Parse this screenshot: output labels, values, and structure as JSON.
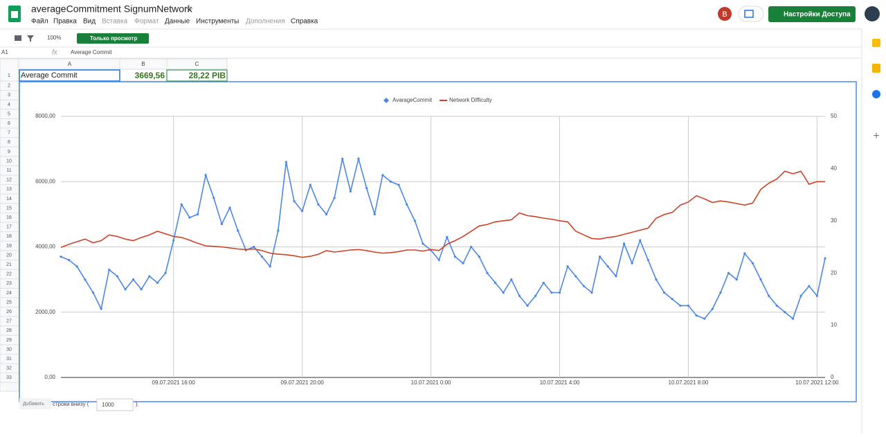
{
  "header": {
    "title": "averageCommitment SignumNetwork",
    "menu": [
      "Файл",
      "Правка",
      "Вид",
      "Вставка",
      "Формат",
      "Данные",
      "Инструменты",
      "Дополнения",
      "Справка"
    ],
    "avatar": "В",
    "share": "Настройки Доступа"
  },
  "toolbar": {
    "zoom": "100%",
    "mode": "Только просмотр"
  },
  "formula_bar": {
    "cell": "A1",
    "content": "Average Commit"
  },
  "sheet": {
    "columns": [
      "A",
      "B",
      "C"
    ],
    "row_headers": [
      1,
      2,
      3,
      4,
      5,
      6,
      7,
      8,
      9,
      10,
      11,
      12,
      13,
      14,
      15,
      16,
      17,
      18,
      19,
      20,
      21,
      22,
      23,
      24,
      25,
      26,
      27,
      28,
      29,
      30,
      31,
      32,
      33
    ],
    "row1": [
      "Average Commit",
      "3669,56",
      "28,22 PIB"
    ]
  },
  "footer": {
    "button": "Добавить",
    "text": "строки внизу (",
    "count": "1000",
    "end": ")."
  },
  "chart_data": {
    "type": "line",
    "legend": "top",
    "grid": true,
    "x": [
      "09.07.2021 12:30",
      "09.07.2021 12:45",
      "09.07.2021 13:00",
      "09.07.2021 13:15",
      "09.07.2021 13:30",
      "09.07.2021 13:45",
      "09.07.2021 14:00",
      "09.07.2021 14:15",
      "09.07.2021 14:30",
      "09.07.2021 14:45",
      "09.07.2021 15:00",
      "09.07.2021 15:15",
      "09.07.2021 15:30",
      "09.07.2021 15:45",
      "09.07.2021 16:00",
      "09.07.2021 16:15",
      "09.07.2021 16:30",
      "09.07.2021 16:45",
      "09.07.2021 17:00",
      "09.07.2021 17:15",
      "09.07.2021 17:30",
      "09.07.2021 17:45",
      "09.07.2021 18:00",
      "09.07.2021 18:15",
      "09.07.2021 18:30",
      "09.07.2021 18:45",
      "09.07.2021 19:00",
      "09.07.2021 19:15",
      "09.07.2021 19:30",
      "09.07.2021 19:45",
      "09.07.2021 20:00",
      "09.07.2021 20:15",
      "09.07.2021 20:30",
      "09.07.2021 20:45",
      "09.07.2021 21:00",
      "09.07.2021 21:15",
      "09.07.2021 21:30",
      "09.07.2021 21:45",
      "09.07.2021 22:00",
      "09.07.2021 22:15",
      "09.07.2021 22:30",
      "09.07.2021 22:45",
      "09.07.2021 23:00",
      "09.07.2021 23:15",
      "09.07.2021 23:30",
      "09.07.2021 23:45",
      "10.07.2021 0:00",
      "10.07.2021 0:15",
      "10.07.2021 0:30",
      "10.07.2021 0:45",
      "10.07.2021 1:00",
      "10.07.2021 1:15",
      "10.07.2021 1:30",
      "10.07.2021 1:45",
      "10.07.2021 2:00",
      "10.07.2021 2:15",
      "10.07.2021 2:30",
      "10.07.2021 2:45",
      "10.07.2021 3:00",
      "10.07.2021 3:15",
      "10.07.2021 3:30",
      "10.07.2021 3:45",
      "10.07.2021 4:00",
      "10.07.2021 4:15",
      "10.07.2021 4:30",
      "10.07.2021 4:45",
      "10.07.2021 5:00",
      "10.07.2021 5:15",
      "10.07.2021 5:30",
      "10.07.2021 5:45",
      "10.07.2021 6:00",
      "10.07.2021 6:15",
      "10.07.2021 6:30",
      "10.07.2021 6:45",
      "10.07.2021 7:00",
      "10.07.2021 7:15",
      "10.07.2021 7:30",
      "10.07.2021 7:45",
      "10.07.2021 8:00",
      "10.07.2021 8:15",
      "10.07.2021 8:30",
      "10.07.2021 8:45",
      "10.07.2021 9:00",
      "10.07.2021 9:15",
      "10.07.2021 9:30",
      "10.07.2021 9:45",
      "10.07.2021 10:00",
      "10.07.2021 10:15",
      "10.07.2021 10:30",
      "10.07.2021 10:45",
      "10.07.2021 11:00",
      "10.07.2021 11:15",
      "10.07.2021 11:30",
      "10.07.2021 11:45",
      "10.07.2021 12:00",
      "10.07.2021 12:15"
    ],
    "xlim": [
      "09.07.2021 12:30",
      "10.07.2021 12:15"
    ],
    "xticks": [
      "09.07.2021 16:00",
      "09.07.2021 20:00",
      "10.07.2021 0:00",
      "10.07.2021 4:00",
      "10.07.2021 8:00",
      "10.07.2021 12:00"
    ],
    "ylim": [
      0,
      8000
    ],
    "yticks": [
      {
        "value": 0,
        "label": "0,00"
      },
      {
        "value": 2000,
        "label": "2000,00"
      },
      {
        "value": 4000,
        "label": "4000,00"
      },
      {
        "value": 6000,
        "label": "6000,00"
      },
      {
        "value": 8000,
        "label": "8000,00"
      }
    ],
    "y2lim": [
      0,
      50
    ],
    "y2ticks": [
      0,
      10,
      20,
      30,
      40,
      50
    ],
    "series": [
      {
        "name": "AvarageCommit",
        "color": "#4a86e8",
        "markers": true,
        "values": [
          3700,
          3600,
          3400,
          3000,
          2600,
          2100,
          3300,
          3100,
          2700,
          3000,
          2700,
          3100,
          2900,
          3200,
          4200,
          5300,
          4900,
          5000,
          6200,
          5500,
          4700,
          5200,
          4500,
          3900,
          4000,
          3700,
          3400,
          4500,
          6600,
          5400,
          5100,
          5900,
          5300,
          5000,
          5500,
          6700,
          5700,
          6700,
          5800,
          5000,
          6200,
          6000,
          5900,
          5300,
          4800,
          4100,
          3900,
          3600,
          4300,
          3700,
          3500,
          4000,
          3700,
          3200,
          2900,
          2600,
          3000,
          2500,
          2200,
          2500,
          2900,
          2600,
          2600,
          3400,
          3100,
          2800,
          2600,
          3700,
          3400,
          3100,
          4100,
          3500,
          4200,
          3600,
          3000,
          2600,
          2400,
          2200,
          2200,
          1900,
          1800,
          2100,
          2600,
          3200,
          3000,
          3800,
          3500,
          3000,
          2500,
          2200,
          2000,
          1800,
          2500,
          2800,
          2500,
          3650
        ]
      },
      {
        "name": "Network Difficulty",
        "color": "#cc4125",
        "axis": "y2",
        "values": [
          24.9,
          25.5,
          26,
          26.5,
          25.8,
          26.2,
          27.3,
          27,
          26.5,
          26.2,
          26.8,
          27.3,
          28,
          27.5,
          27,
          26.8,
          26.3,
          25.7,
          25.2,
          25.1,
          25,
          24.8,
          24.6,
          24.5,
          24.6,
          24.3,
          23.8,
          23.6,
          23.5,
          23.3,
          23,
          23.2,
          23.6,
          24.3,
          24,
          24.2,
          24.4,
          24.5,
          24.3,
          24,
          23.8,
          23.9,
          24.1,
          24.4,
          24.4,
          24.2,
          24.5,
          24.3,
          25.5,
          26.2,
          27,
          28,
          29,
          29.3,
          29.8,
          30,
          30.2,
          31.5,
          31,
          30.8,
          30.5,
          30.3,
          30,
          29.8,
          28,
          27.3,
          26.6,
          26.5,
          26.8,
          27,
          27.4,
          27.8,
          28.2,
          28.6,
          30.5,
          31.2,
          31.6,
          33,
          33.6,
          34.8,
          34.2,
          33.5,
          33.8,
          33.6,
          33.3,
          33,
          33.4,
          36,
          37.2,
          38,
          39.5,
          39,
          39.5,
          37,
          37.5,
          37.5
        ]
      }
    ]
  }
}
